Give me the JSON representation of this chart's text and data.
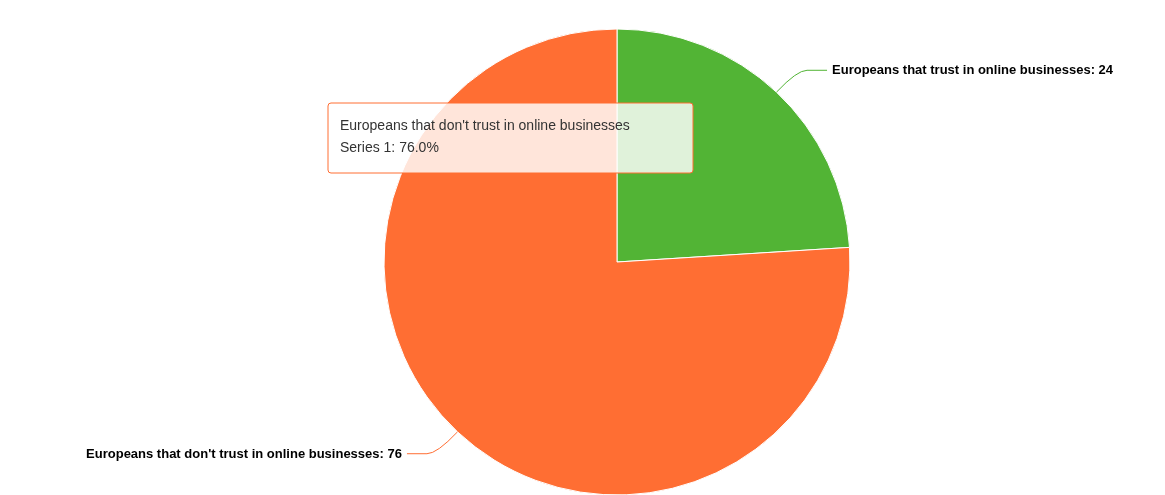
{
  "chart_data": {
    "type": "pie",
    "categories": [
      "Europeans that trust in online businesses",
      "Europeans that don't trust in online businesses"
    ],
    "values": [
      24,
      76
    ],
    "colors": [
      "#52b435",
      "#ff6e33"
    ],
    "value_labels": [
      ": 24",
      ": 76"
    ],
    "annotations": [
      "Europeans that don't trust in online businesses",
      "Series 1: 76.0%"
    ]
  }
}
